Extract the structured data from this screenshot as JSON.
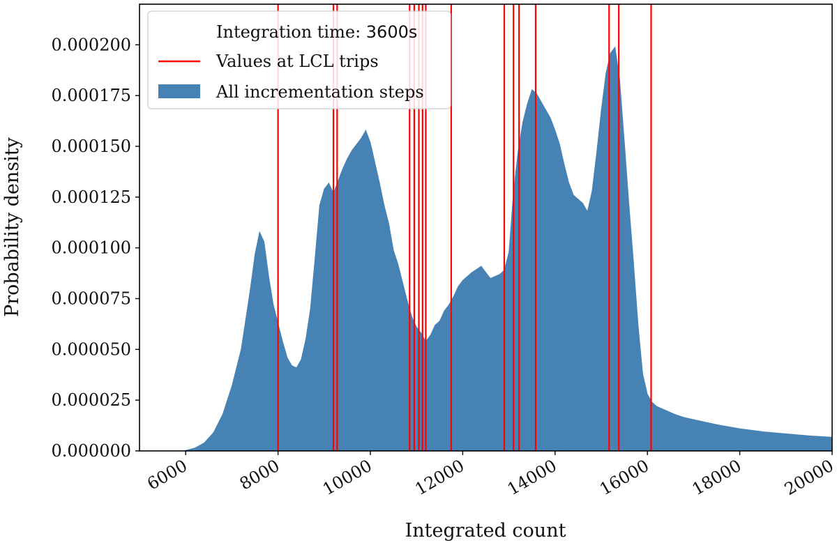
{
  "chart_data": {
    "type": "histogram",
    "xlabel": "Integrated count",
    "ylabel": "Probability density",
    "xlim": [
      5000,
      20000
    ],
    "ylim": [
      0,
      0.00022
    ],
    "xticks": [
      6000,
      8000,
      10000,
      12000,
      14000,
      16000,
      18000,
      20000
    ],
    "xtick_labels": [
      "6000",
      "8000",
      "10000",
      "12000",
      "14000",
      "16000",
      "18000",
      "20000"
    ],
    "yticks": [
      0,
      2.5e-05,
      5e-05,
      7.5e-05,
      0.0001,
      0.000125,
      0.00015,
      0.000175,
      0.0002
    ],
    "ytick_labels": [
      "0.000000",
      "0.000025",
      "0.000050",
      "0.000075",
      "0.000100",
      "0.000125",
      "0.000150",
      "0.000175",
      "0.000200"
    ],
    "legend": {
      "placement": "top-left",
      "title_prefix": "Integration time: ",
      "title_value": "3600s",
      "entries": [
        {
          "label": "Values at LCL trips",
          "color": "#ff0000",
          "kind": "line"
        },
        {
          "label": "All incrementation steps",
          "color": "#4682b4",
          "kind": "patch"
        }
      ]
    },
    "histogram": {
      "name": "All incrementation steps",
      "color": "#4682b4",
      "x": [
        6000,
        6200,
        6400,
        6600,
        6800,
        7000,
        7200,
        7400,
        7500,
        7600,
        7700,
        7800,
        7900,
        8000,
        8100,
        8200,
        8300,
        8400,
        8500,
        8600,
        8700,
        8800,
        8900,
        9000,
        9100,
        9200,
        9300,
        9400,
        9500,
        9600,
        9700,
        9800,
        9900,
        10000,
        10100,
        10200,
        10300,
        10400,
        10500,
        10600,
        10700,
        10800,
        10900,
        11000,
        11100,
        11200,
        11300,
        11400,
        11500,
        11600,
        11700,
        11800,
        11900,
        12000,
        12200,
        12400,
        12600,
        12800,
        12900,
        13000,
        13100,
        13200,
        13300,
        13400,
        13500,
        13600,
        13700,
        13800,
        13900,
        14000,
        14100,
        14200,
        14300,
        14400,
        14500,
        14600,
        14700,
        14800,
        14900,
        15000,
        15100,
        15200,
        15300,
        15400,
        15500,
        15600,
        15700,
        15800,
        15900,
        16000,
        16100,
        16200,
        16400,
        16600,
        16800,
        17000,
        17500,
        18000,
        18500,
        19000,
        19500,
        20000
      ],
      "density": [
        3e-07,
        1.5e-06,
        4e-06,
        9e-06,
        1.8e-05,
        3.2e-05,
        5e-05,
        8e-05,
        9.7e-05,
        0.000108,
        0.000103,
        8.6e-05,
        7.2e-05,
        6.3e-05,
        5.4e-05,
        4.6e-05,
        4.2e-05,
        4.1e-05,
        4.5e-05,
        5.5e-05,
        7e-05,
        9.5e-05,
        0.000121,
        0.000129,
        0.000132,
        0.000127,
        0.000133,
        0.000139,
        0.000144,
        0.000148,
        0.000151,
        0.000154,
        0.000158,
        0.000152,
        0.000142,
        0.000132,
        0.000121,
        0.000112,
        9.9e-05,
        9.2e-05,
        8.3e-05,
        7.4e-05,
        6.6e-05,
        6.1e-05,
        5.8e-05,
        5.4e-05,
        5.7e-05,
        6.2e-05,
        6.4e-05,
        6.9e-05,
        7.2e-05,
        7.6e-05,
        8.1e-05,
        8.4e-05,
        8.8e-05,
        9.1e-05,
        8.5e-05,
        8.7e-05,
        8.9e-05,
        9.8e-05,
        0.000128,
        0.000148,
        0.000162,
        0.000171,
        0.000178,
        0.000176,
        0.000172,
        0.000168,
        0.000164,
        0.000158,
        0.000151,
        0.000141,
        0.000132,
        0.000126,
        0.000124,
        0.000122,
        0.000118,
        0.000128,
        0.000147,
        0.000168,
        0.000186,
        0.000196,
        0.000199,
        0.000183,
        0.000153,
        0.000122,
        9.3e-05,
        6.2e-05,
        3.8e-05,
        2.8e-05,
        2.4e-05,
        2.2e-05,
        2e-05,
        1.8e-05,
        1.65e-05,
        1.55e-05,
        1.3e-05,
        1.1e-05,
        9.5e-06,
        8.5e-06,
        7.5e-06,
        6.8e-06
      ]
    },
    "vlines": {
      "name": "Values at LCL trips",
      "color": "#ff0000",
      "x": [
        8000,
        9200,
        9280,
        10850,
        10950,
        11050,
        11130,
        11200,
        11750,
        12900,
        13100,
        13220,
        13580,
        15170,
        15380,
        16080
      ]
    }
  }
}
